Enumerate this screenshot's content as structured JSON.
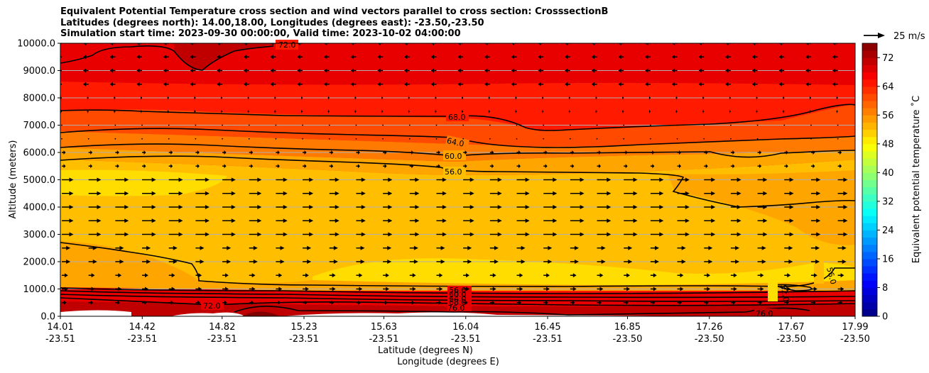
{
  "chart_data": {
    "type": "heatmap",
    "title_lines": [
      "Equivalent Potential Temperature cross section and wind vectors parallel to cross section: CrosssectionB",
      "Latitudes (degrees north): 14.00,18.00, Longitudes (degrees east): -23.50,-23.50",
      "Simulation start time: 2023-09-30 00:00:00, Valid time: 2023-10-02 04:00:00"
    ],
    "xlabel_lat": "Latitude (degrees N)",
    "xlabel_lon": "Longitude (degrees E)",
    "ylabel": "Altitude (meters)",
    "ylim": [
      0,
      10000
    ],
    "y_ticks": [
      "0.0",
      "1000.0",
      "2000.0",
      "3000.0",
      "4000.0",
      "5000.0",
      "6000.0",
      "7000.0",
      "8000.0",
      "9000.0",
      "10000.0"
    ],
    "x_ticks": [
      {
        "lat": "14.01",
        "lon": "-23.51"
      },
      {
        "lat": "14.42",
        "lon": "-23.51"
      },
      {
        "lat": "14.82",
        "lon": "-23.51"
      },
      {
        "lat": "15.23",
        "lon": "-23.51"
      },
      {
        "lat": "15.63",
        "lon": "-23.51"
      },
      {
        "lat": "16.04",
        "lon": "-23.51"
      },
      {
        "lat": "16.45",
        "lon": "-23.51"
      },
      {
        "lat": "16.85",
        "lon": "-23.50"
      },
      {
        "lat": "17.26",
        "lon": "-23.50"
      },
      {
        "lat": "17.67",
        "lon": "-23.50"
      },
      {
        "lat": "17.99",
        "lon": "-23.50"
      }
    ],
    "grid": "horizontal",
    "colorbar": {
      "label": "Equivalent potential temperature ˚C",
      "ticks": [
        "0",
        "8",
        "16",
        "24",
        "32",
        "40",
        "48",
        "56",
        "64",
        "72"
      ],
      "range": [
        0,
        76
      ],
      "colormap": "jet"
    },
    "quiver_key": {
      "label": "25 m/s"
    },
    "contour_labels": [
      "72.0",
      "68.0",
      "64.0",
      "60.0",
      "56.0",
      "52.0",
      "76.0"
    ],
    "approx_field_layers": [
      {
        "altitude_top_m": 400,
        "theta_e": 76
      },
      {
        "altitude_top_m": 900,
        "theta_e": 66
      },
      {
        "altitude_top_m": 2200,
        "theta_e": 54
      },
      {
        "altitude_top_m": 5200,
        "theta_e": 53
      },
      {
        "altitude_top_m": 6000,
        "theta_e": 58
      },
      {
        "altitude_top_m": 7200,
        "theta_e": 66
      },
      {
        "altitude_top_m": 10000,
        "theta_e": 72
      }
    ]
  }
}
